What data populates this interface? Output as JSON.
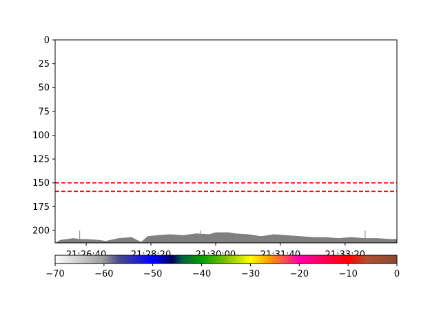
{
  "chart_data": {
    "type": "heatmap",
    "title": "",
    "xlabel": "",
    "ylabel": "",
    "x_ticks": [
      "21:26:40",
      "21:28:20",
      "21:30:00",
      "21:31:40",
      "21:33:20"
    ],
    "x_tick_seconds": [
      120,
      220,
      320,
      420,
      520
    ],
    "x_range_seconds": [
      72,
      600
    ],
    "y_ticks": [
      0,
      25,
      50,
      75,
      100,
      125,
      150,
      175,
      200
    ],
    "y_range": [
      213,
      0
    ],
    "reference_lines": [
      {
        "y": 150,
        "color": "#ff0000",
        "style": "dashed"
      },
      {
        "y": 159,
        "color": "#ff0000",
        "style": "dashed"
      }
    ],
    "floor_profile": {
      "color": "#808080",
      "x_seconds": [
        72,
        80,
        100,
        110,
        120,
        140,
        150,
        170,
        190,
        205,
        215,
        230,
        250,
        270,
        290,
        310,
        320,
        340,
        350,
        370,
        390,
        410,
        430,
        450,
        470,
        490,
        510,
        530,
        550,
        570,
        590,
        600
      ],
      "depth": [
        213,
        210,
        208,
        209,
        209,
        210,
        211,
        208,
        207,
        212,
        206,
        205,
        204,
        205,
        203,
        204,
        202,
        202,
        203,
        204,
        206,
        204,
        205,
        206,
        207,
        207,
        208,
        207,
        208,
        208,
        209,
        209
      ],
      "spikes": [
        {
          "x_seconds": 110,
          "depth": 200
        },
        {
          "x_seconds": 296,
          "depth": 200
        },
        {
          "x_seconds": 551,
          "depth": 200
        }
      ]
    },
    "colorbar": {
      "ticks": [
        -70,
        -60,
        -50,
        -40,
        -30,
        -20,
        -10,
        0
      ],
      "range": [
        -70,
        0
      ],
      "orientation": "horizontal",
      "stops": [
        {
          "v": -70,
          "color": "#ffffff"
        },
        {
          "v": -60,
          "color": "#9a9a9a"
        },
        {
          "v": -57,
          "color": "#4a4a8a"
        },
        {
          "v": -50,
          "color": "#0000ff"
        },
        {
          "v": -46,
          "color": "#000060"
        },
        {
          "v": -44,
          "color": "#006040"
        },
        {
          "v": -40,
          "color": "#00a000"
        },
        {
          "v": -35,
          "color": "#80c000"
        },
        {
          "v": -30,
          "color": "#ffff00"
        },
        {
          "v": -26,
          "color": "#ff9900"
        },
        {
          "v": -20,
          "color": "#ff00aa"
        },
        {
          "v": -10,
          "color": "#ff0000"
        },
        {
          "v": -6,
          "color": "#b05030"
        },
        {
          "v": 0,
          "color": "#8b4a32"
        }
      ]
    }
  }
}
